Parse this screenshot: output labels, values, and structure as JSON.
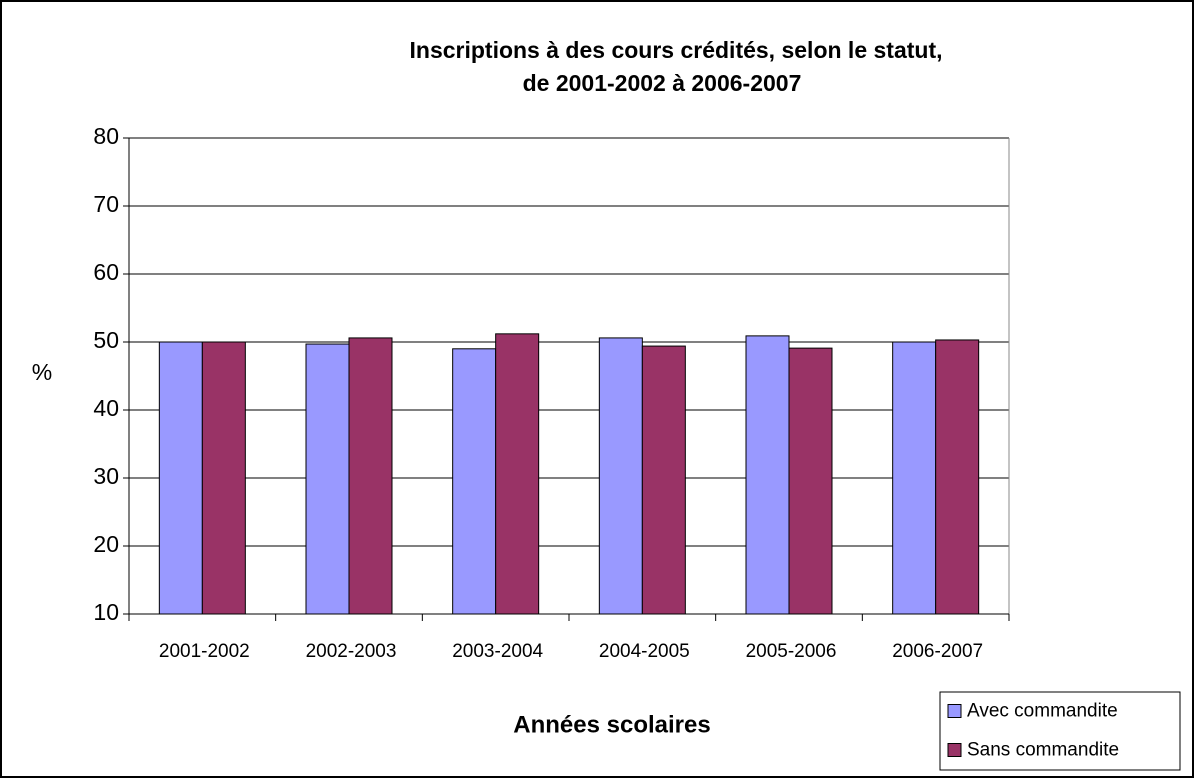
{
  "chart_data": {
    "type": "bar",
    "title": [
      "Inscriptions à des cours crédités, selon le statut,",
      "de 2001-2002 à 2006-2007"
    ],
    "x_label": "Années scolaires",
    "y_label": "%",
    "categories": [
      "2001-2002",
      "2002-2003",
      "2003-2004",
      "2004-2005",
      "2005-2006",
      "2006-2007"
    ],
    "series": [
      {
        "name": "Avec commandite",
        "color": "#9999ff",
        "values": [
          50.0,
          49.7,
          49.0,
          50.6,
          50.9,
          50.0
        ]
      },
      {
        "name": "Sans commandite",
        "color": "#993366",
        "values": [
          50.0,
          50.6,
          51.2,
          49.4,
          49.1,
          50.3
        ]
      }
    ],
    "ylim": [
      10,
      80
    ],
    "yticks": [
      10,
      20,
      30,
      40,
      50,
      60,
      70,
      80
    ],
    "grid": true,
    "legend": "bottom-right"
  }
}
